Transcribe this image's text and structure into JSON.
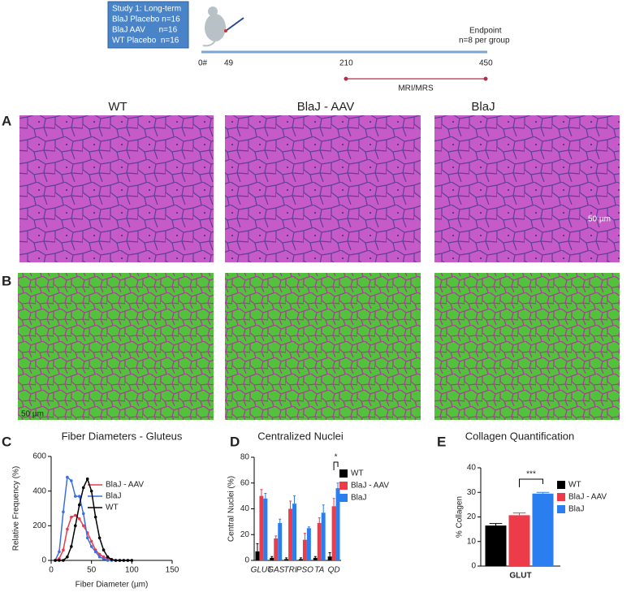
{
  "timeline": {
    "study_box": [
      "Study 1: Long-term",
      "BlaJ Placebo n=16",
      "BlaJ AAV      n=16",
      "WT Placebo  n=16"
    ],
    "ticks": [
      "0#",
      "49",
      "210",
      "450"
    ],
    "endpoint": "Endpoint",
    "endpoint_note": "n=8 per group",
    "interval": "MRI/MRS"
  },
  "panel_letters": [
    "A",
    "B",
    "C",
    "D",
    "E"
  ],
  "image_columns": [
    "WT",
    "BlaJ - AAV",
    "BlaJ"
  ],
  "scale_bar": "50 µm",
  "chart_data": [
    {
      "type": "line",
      "title": "Fiber Diameters - Gluteus",
      "x_label": "Fiber Diameter (µm)",
      "y_label": "Relative Frequency (%)",
      "x": [
        5,
        10,
        15,
        20,
        25,
        30,
        35,
        40,
        45,
        50,
        55,
        60,
        65,
        70,
        75,
        80,
        85,
        90,
        95,
        100
      ],
      "series": [
        {
          "name": "BlaJ - AAV",
          "color": "#ee3b4a",
          "values": [
            0,
            10,
            60,
            180,
            250,
            260,
            240,
            200,
            160,
            110,
            60,
            35,
            20,
            10,
            5,
            0,
            0,
            0,
            0,
            0
          ]
        },
        {
          "name": "BlaJ",
          "color": "#3a6fe0",
          "values": [
            0,
            50,
            280,
            480,
            460,
            370,
            370,
            270,
            130,
            80,
            50,
            20,
            10,
            0,
            0,
            0,
            0,
            0,
            0,
            0
          ]
        },
        {
          "name": "WT",
          "color": "#000000",
          "values": [
            0,
            0,
            0,
            20,
            80,
            200,
            320,
            420,
            470,
            400,
            250,
            130,
            60,
            20,
            5,
            0,
            0,
            0,
            0,
            0
          ]
        }
      ],
      "xlim": [
        0,
        150
      ],
      "xticks": [
        0,
        50,
        100,
        150
      ],
      "ylim": [
        0,
        600
      ],
      "yticks": [
        0,
        200,
        400,
        600
      ]
    },
    {
      "type": "bar",
      "title": "Centralized Nuclei",
      "y_label": "Central Nuclei (%)",
      "categories": [
        "GLUT",
        "GAS",
        "TRI",
        "PSO",
        "TA",
        "QD"
      ],
      "series": [
        {
          "name": "WT",
          "color": "#000000",
          "values": [
            7,
            2,
            1,
            1,
            2,
            3
          ],
          "errors": [
            6,
            1,
            1,
            1,
            1,
            3
          ]
        },
        {
          "name": "BlaJ - AAV",
          "color": "#ee3b4a",
          "values": [
            50,
            17,
            40,
            16,
            29,
            42
          ],
          "errors": [
            5,
            2,
            6,
            5,
            4,
            6
          ]
        },
        {
          "name": "BlaJ",
          "color": "#2a7ef0",
          "values": [
            48,
            29,
            44,
            25,
            37,
            56
          ],
          "errors": [
            4,
            3,
            6,
            1,
            6,
            4
          ]
        }
      ],
      "ylim": [
        0,
        80
      ],
      "yticks": [
        0,
        20,
        40,
        60,
        80
      ],
      "annotation": "*"
    },
    {
      "type": "bar",
      "title": "Collagen Quantification",
      "y_label": "% Collagen",
      "categories": [
        "GLUT"
      ],
      "series": [
        {
          "name": "WT",
          "color": "#000000",
          "values": [
            16.5
          ],
          "errors": [
            0.8
          ]
        },
        {
          "name": "BlaJ - AAV",
          "color": "#ee3b4a",
          "values": [
            20.7
          ],
          "errors": [
            0.9
          ]
        },
        {
          "name": "BlaJ",
          "color": "#2a7ef0",
          "values": [
            29.5
          ],
          "errors": [
            0.5
          ]
        }
      ],
      "ylim": [
        0,
        40
      ],
      "yticks": [
        0,
        10,
        20,
        30,
        40
      ],
      "annotation": "***"
    }
  ]
}
